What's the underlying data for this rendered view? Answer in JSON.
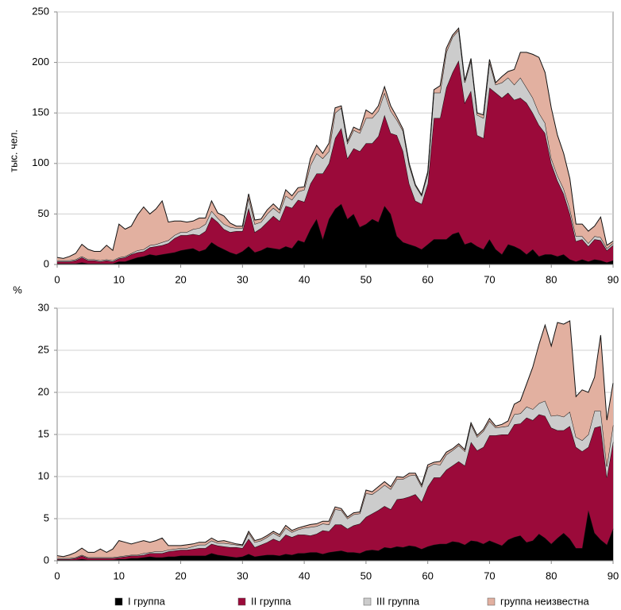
{
  "chart_data": [
    {
      "type": "stacked-area",
      "ylabel": "тыс. чел.",
      "x": [
        0,
        1,
        2,
        3,
        4,
        5,
        6,
        7,
        8,
        9,
        10,
        11,
        12,
        13,
        14,
        15,
        16,
        17,
        18,
        19,
        20,
        21,
        22,
        23,
        24,
        25,
        26,
        27,
        28,
        29,
        30,
        31,
        32,
        33,
        34,
        35,
        36,
        37,
        38,
        39,
        40,
        41,
        42,
        43,
        44,
        45,
        46,
        47,
        48,
        49,
        50,
        51,
        52,
        53,
        54,
        55,
        56,
        57,
        58,
        59,
        60,
        61,
        62,
        63,
        64,
        65,
        66,
        67,
        68,
        69,
        70,
        71,
        72,
        73,
        74,
        75,
        76,
        77,
        78,
        79,
        80,
        81,
        82,
        83,
        84,
        85,
        86,
        87,
        88,
        89,
        90
      ],
      "xlim": [
        0,
        90
      ],
      "xticks": [
        0,
        10,
        20,
        30,
        40,
        50,
        60,
        70,
        80,
        90
      ],
      "ylim": [
        0,
        250
      ],
      "yticks": [
        0,
        50,
        100,
        150,
        200,
        250
      ],
      "grid": true,
      "series": [
        {
          "name": "I группа",
          "color": "#000000",
          "values": [
            1,
            1,
            1,
            1,
            2,
            1,
            1,
            1,
            1,
            1,
            3,
            3,
            5,
            7,
            8,
            10,
            9,
            10,
            11,
            12,
            14,
            15,
            16,
            13,
            15,
            22,
            18,
            15,
            12,
            10,
            13,
            18,
            12,
            14,
            17,
            16,
            15,
            18,
            16,
            24,
            22,
            35,
            45,
            25,
            45,
            55,
            60,
            45,
            50,
            37,
            40,
            45,
            42,
            58,
            50,
            28,
            22,
            20,
            18,
            15,
            20,
            25,
            25,
            25,
            30,
            32,
            20,
            22,
            18,
            15,
            25,
            15,
            10,
            20,
            18,
            15,
            10,
            15,
            8,
            10,
            10,
            8,
            10,
            5,
            3,
            5,
            3,
            5,
            4,
            2,
            4
          ]
        },
        {
          "name": "II группа",
          "color": "#9b0a3a",
          "values": [
            2,
            2,
            2,
            3,
            5,
            3,
            3,
            2,
            3,
            2,
            3,
            4,
            5,
            5,
            5,
            7,
            9,
            9,
            10,
            14,
            15,
            14,
            14,
            16,
            18,
            25,
            24,
            20,
            20,
            23,
            20,
            38,
            20,
            22,
            25,
            32,
            28,
            40,
            40,
            40,
            40,
            45,
            45,
            65,
            55,
            70,
            75,
            60,
            65,
            75,
            80,
            75,
            85,
            90,
            80,
            100,
            90,
            60,
            45,
            45,
            60,
            120,
            120,
            150,
            160,
            170,
            140,
            150,
            110,
            110,
            150,
            155,
            155,
            150,
            145,
            150,
            150,
            135,
            130,
            120,
            90,
            75,
            60,
            45,
            20,
            20,
            15,
            20,
            20,
            12,
            15
          ]
        },
        {
          "name": "III группа",
          "color": "#cccccc",
          "values": [
            1,
            1,
            1,
            1,
            1,
            1,
            1,
            1,
            1,
            1,
            1,
            1,
            1,
            2,
            2,
            2,
            2,
            3,
            3,
            3,
            3,
            3,
            5,
            7,
            7,
            6,
            4,
            5,
            5,
            3,
            3,
            10,
            8,
            6,
            8,
            8,
            8,
            10,
            8,
            8,
            12,
            18,
            20,
            15,
            12,
            25,
            20,
            15,
            18,
            18,
            25,
            25,
            25,
            22,
            22,
            15,
            20,
            18,
            15,
            8,
            10,
            25,
            25,
            35,
            35,
            30,
            20,
            30,
            20,
            20,
            25,
            8,
            15,
            15,
            15,
            20,
            15,
            15,
            12,
            10,
            5,
            5,
            5,
            5,
            5,
            3,
            3,
            3,
            3,
            2,
            2
          ]
        },
        {
          "name": "группа неизвестна",
          "color": "#e2b0a0",
          "values": [
            3,
            2,
            4,
            6,
            12,
            10,
            8,
            9,
            14,
            10,
            33,
            27,
            27,
            35,
            42,
            31,
            35,
            41,
            18,
            14,
            11,
            10,
            8,
            10,
            6,
            10,
            5,
            8,
            4,
            2,
            2,
            4,
            4,
            3,
            4,
            4,
            3,
            6,
            4,
            4,
            3,
            7,
            8,
            5,
            8,
            5,
            2,
            2,
            3,
            3,
            8,
            4,
            5,
            6,
            5,
            3,
            2,
            2,
            1,
            1,
            2,
            3,
            7,
            4,
            2,
            2,
            2,
            2,
            2,
            3,
            3,
            2,
            6,
            6,
            15,
            25,
            35,
            43,
            55,
            50,
            50,
            40,
            35,
            30,
            12,
            12,
            12,
            10,
            20,
            3,
            2
          ]
        }
      ]
    },
    {
      "type": "stacked-area",
      "ylabel": "%",
      "x": [
        0,
        1,
        2,
        3,
        4,
        5,
        6,
        7,
        8,
        9,
        10,
        11,
        12,
        13,
        14,
        15,
        16,
        17,
        18,
        19,
        20,
        21,
        22,
        23,
        24,
        25,
        26,
        27,
        28,
        29,
        30,
        31,
        32,
        33,
        34,
        35,
        36,
        37,
        38,
        39,
        40,
        41,
        42,
        43,
        44,
        45,
        46,
        47,
        48,
        49,
        50,
        51,
        52,
        53,
        54,
        55,
        56,
        57,
        58,
        59,
        60,
        61,
        62,
        63,
        64,
        65,
        66,
        67,
        68,
        69,
        70,
        71,
        72,
        73,
        74,
        75,
        76,
        77,
        78,
        79,
        80,
        81,
        82,
        83,
        84,
        85,
        86,
        87,
        88,
        89,
        90
      ],
      "xlim": [
        0,
        90
      ],
      "xticks": [
        0,
        10,
        20,
        30,
        40,
        50,
        60,
        70,
        80,
        90
      ],
      "ylim": [
        0,
        30
      ],
      "yticks": [
        0,
        5,
        10,
        15,
        20,
        25,
        30
      ],
      "grid": true,
      "series": [
        {
          "color": "#000000",
          "values": [
            0.1,
            0.1,
            0.1,
            0.1,
            0.2,
            0.1,
            0.1,
            0.1,
            0.1,
            0.1,
            0.2,
            0.2,
            0.3,
            0.3,
            0.4,
            0.5,
            0.4,
            0.4,
            0.5,
            0.5,
            0.6,
            0.6,
            0.6,
            0.6,
            0.6,
            0.9,
            0.7,
            0.6,
            0.5,
            0.4,
            0.5,
            0.8,
            0.5,
            0.6,
            0.7,
            0.7,
            0.6,
            0.8,
            0.7,
            0.9,
            0.9,
            1.0,
            1.0,
            0.8,
            1.0,
            1.1,
            1.2,
            1.0,
            1.0,
            0.9,
            1.2,
            1.3,
            1.2,
            1.6,
            1.5,
            1.7,
            1.6,
            1.8,
            1.7,
            1.4,
            1.7,
            1.9,
            2.0,
            2.0,
            2.3,
            2.2,
            1.9,
            2.4,
            2.3,
            2.0,
            2.4,
            2.1,
            1.8,
            2.5,
            2.8,
            3.0,
            2.2,
            2.4,
            3.2,
            2.7,
            2.0,
            2.7,
            3.3,
            2.6,
            1.5,
            1.5,
            6.0,
            3.3,
            2.5,
            1.9,
            3.8
          ]
        },
        {
          "color": "#9b0a3a",
          "values": [
            0.1,
            0.1,
            0.1,
            0.2,
            0.4,
            0.2,
            0.2,
            0.2,
            0.2,
            0.2,
            0.2,
            0.3,
            0.3,
            0.3,
            0.3,
            0.4,
            0.5,
            0.5,
            0.6,
            0.7,
            0.7,
            0.7,
            0.8,
            0.9,
            0.9,
            1.1,
            1.1,
            1.1,
            1.1,
            1.2,
            1.0,
            1.8,
            1.1,
            1.3,
            1.5,
            1.9,
            1.7,
            2.3,
            2.1,
            2.2,
            2.2,
            2.0,
            2.2,
            2.8,
            2.5,
            3.2,
            3.1,
            2.8,
            3.2,
            3.5,
            4.0,
            4.3,
            4.8,
            4.9,
            4.6,
            5.6,
            5.8,
            5.8,
            6.2,
            5.6,
            7.1,
            8.0,
            7.9,
            8.8,
            9.0,
            9.6,
            9.4,
            11.7,
            10.8,
            11.5,
            12.5,
            12.8,
            13.2,
            12.5,
            13.4,
            13.3,
            14.8,
            14.3,
            14.2,
            14.5,
            13.8,
            12.8,
            12.2,
            13.4,
            12.0,
            11.5,
            7.5,
            12.5,
            13.5,
            8.0,
            10.3
          ]
        },
        {
          "color": "#cccccc",
          "values": [
            0.1,
            0.1,
            0.1,
            0.1,
            0.1,
            0.1,
            0.1,
            0.1,
            0.1,
            0.1,
            0.1,
            0.1,
            0.1,
            0.1,
            0.2,
            0.1,
            0.2,
            0.2,
            0.2,
            0.2,
            0.2,
            0.2,
            0.3,
            0.4,
            0.4,
            0.4,
            0.3,
            0.4,
            0.4,
            0.3,
            0.3,
            0.7,
            0.6,
            0.5,
            0.6,
            0.7,
            0.6,
            0.8,
            0.6,
            0.6,
            0.8,
            1.0,
            0.9,
            0.8,
            0.8,
            1.8,
            1.7,
            1.2,
            1.3,
            1.2,
            2.8,
            2.3,
            2.4,
            2.5,
            2.4,
            2.4,
            2.3,
            2.5,
            2.3,
            1.8,
            2.3,
            1.6,
            1.5,
            1.8,
            1.8,
            1.9,
            1.7,
            2.1,
            1.6,
            1.9,
            1.7,
            0.9,
            0.9,
            1.0,
            1.2,
            1.2,
            1.3,
            1.3,
            1.3,
            1.8,
            1.4,
            1.8,
            1.6,
            1.7,
            1.2,
            1.3,
            1.5,
            2.0,
            1.8,
            1.3,
            2.0
          ]
        },
        {
          "color": "#e2b0a0",
          "values": [
            0.3,
            0.2,
            0.4,
            0.6,
            0.8,
            0.6,
            0.6,
            1.0,
            0.6,
            1.0,
            1.9,
            1.6,
            1.3,
            1.5,
            1.5,
            1.2,
            1.3,
            1.6,
            0.5,
            0.4,
            0.3,
            0.4,
            0.3,
            0.3,
            0.3,
            0.3,
            0.2,
            0.3,
            0.2,
            0.1,
            0.1,
            0.2,
            0.2,
            0.2,
            0.2,
            0.2,
            0.2,
            0.3,
            0.2,
            0.2,
            0.2,
            0.3,
            0.3,
            0.3,
            0.4,
            0.3,
            0.2,
            0.2,
            0.2,
            0.2,
            0.4,
            0.3,
            0.4,
            0.4,
            0.3,
            0.3,
            0.2,
            0.3,
            0.2,
            0.2,
            0.3,
            0.2,
            0.4,
            0.3,
            0.2,
            0.2,
            0.2,
            0.2,
            0.2,
            0.2,
            0.3,
            0.2,
            0.3,
            0.6,
            1.2,
            1.5,
            2.7,
            5.0,
            7.0,
            9.0,
            8.3,
            11.0,
            11.0,
            10.8,
            4.8,
            6.0,
            5.0,
            4.0,
            9.0,
            5.5,
            5.0
          ]
        }
      ]
    }
  ]
}
